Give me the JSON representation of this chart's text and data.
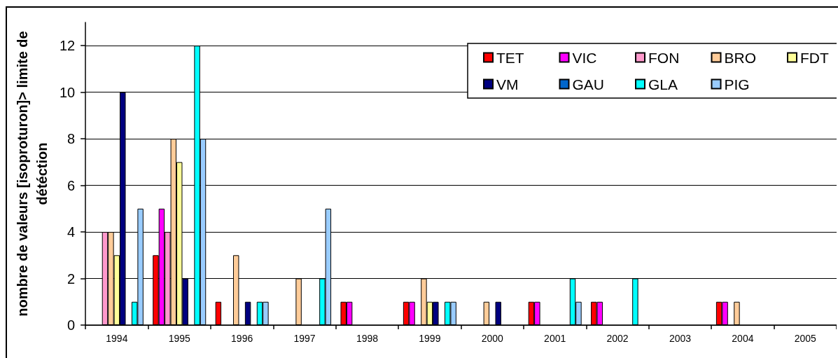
{
  "chart_data": {
    "type": "bar",
    "ylabel": "nombre de valeurs [isoproturon]> limite de détéction",
    "categories": [
      "1994",
      "1995",
      "1996",
      "1997",
      "1998",
      "1999",
      "2000",
      "2001",
      "2002",
      "2003",
      "2004",
      "2005"
    ],
    "series": [
      {
        "name": "TET",
        "color": "#ff0000",
        "values": [
          0,
          3,
          1,
          0,
          1,
          1,
          0,
          1,
          1,
          0,
          1,
          0
        ]
      },
      {
        "name": "VIC",
        "color": "#ff00ff",
        "values": [
          0,
          5,
          0,
          0,
          1,
          1,
          0,
          1,
          1,
          0,
          1,
          0
        ]
      },
      {
        "name": "FON",
        "color": "#ff99cc",
        "values": [
          4,
          4,
          0,
          0,
          0,
          0,
          0,
          0,
          0,
          0,
          0,
          0
        ]
      },
      {
        "name": "BRO",
        "color": "#ffcc99",
        "values": [
          4,
          8,
          3,
          2,
          0,
          2,
          1,
          0,
          0,
          0,
          1,
          0
        ]
      },
      {
        "name": "FDT",
        "color": "#ffff99",
        "values": [
          3,
          7,
          0,
          0,
          0,
          1,
          0,
          0,
          0,
          0,
          0,
          0
        ]
      },
      {
        "name": "VM",
        "color": "#000080",
        "values": [
          10,
          2,
          1,
          0,
          0,
          1,
          1,
          0,
          0,
          0,
          0,
          0
        ]
      },
      {
        "name": "GAU",
        "color": "#0066cc",
        "values": [
          0,
          0,
          0,
          0,
          0,
          0,
          0,
          0,
          0,
          0,
          0,
          0
        ]
      },
      {
        "name": "GLA",
        "color": "#00ffff",
        "values": [
          1,
          12,
          1,
          2,
          0,
          1,
          0,
          2,
          2,
          0,
          0,
          0
        ]
      },
      {
        "name": "PIG",
        "color": "#99ccff",
        "values": [
          5,
          8,
          1,
          5,
          0,
          1,
          0,
          1,
          0,
          0,
          0,
          0
        ]
      }
    ],
    "ylim": [
      0,
      13
    ],
    "yticks": [
      0,
      2,
      4,
      6,
      8,
      10,
      12
    ],
    "grid": "y",
    "legend": "top right"
  }
}
